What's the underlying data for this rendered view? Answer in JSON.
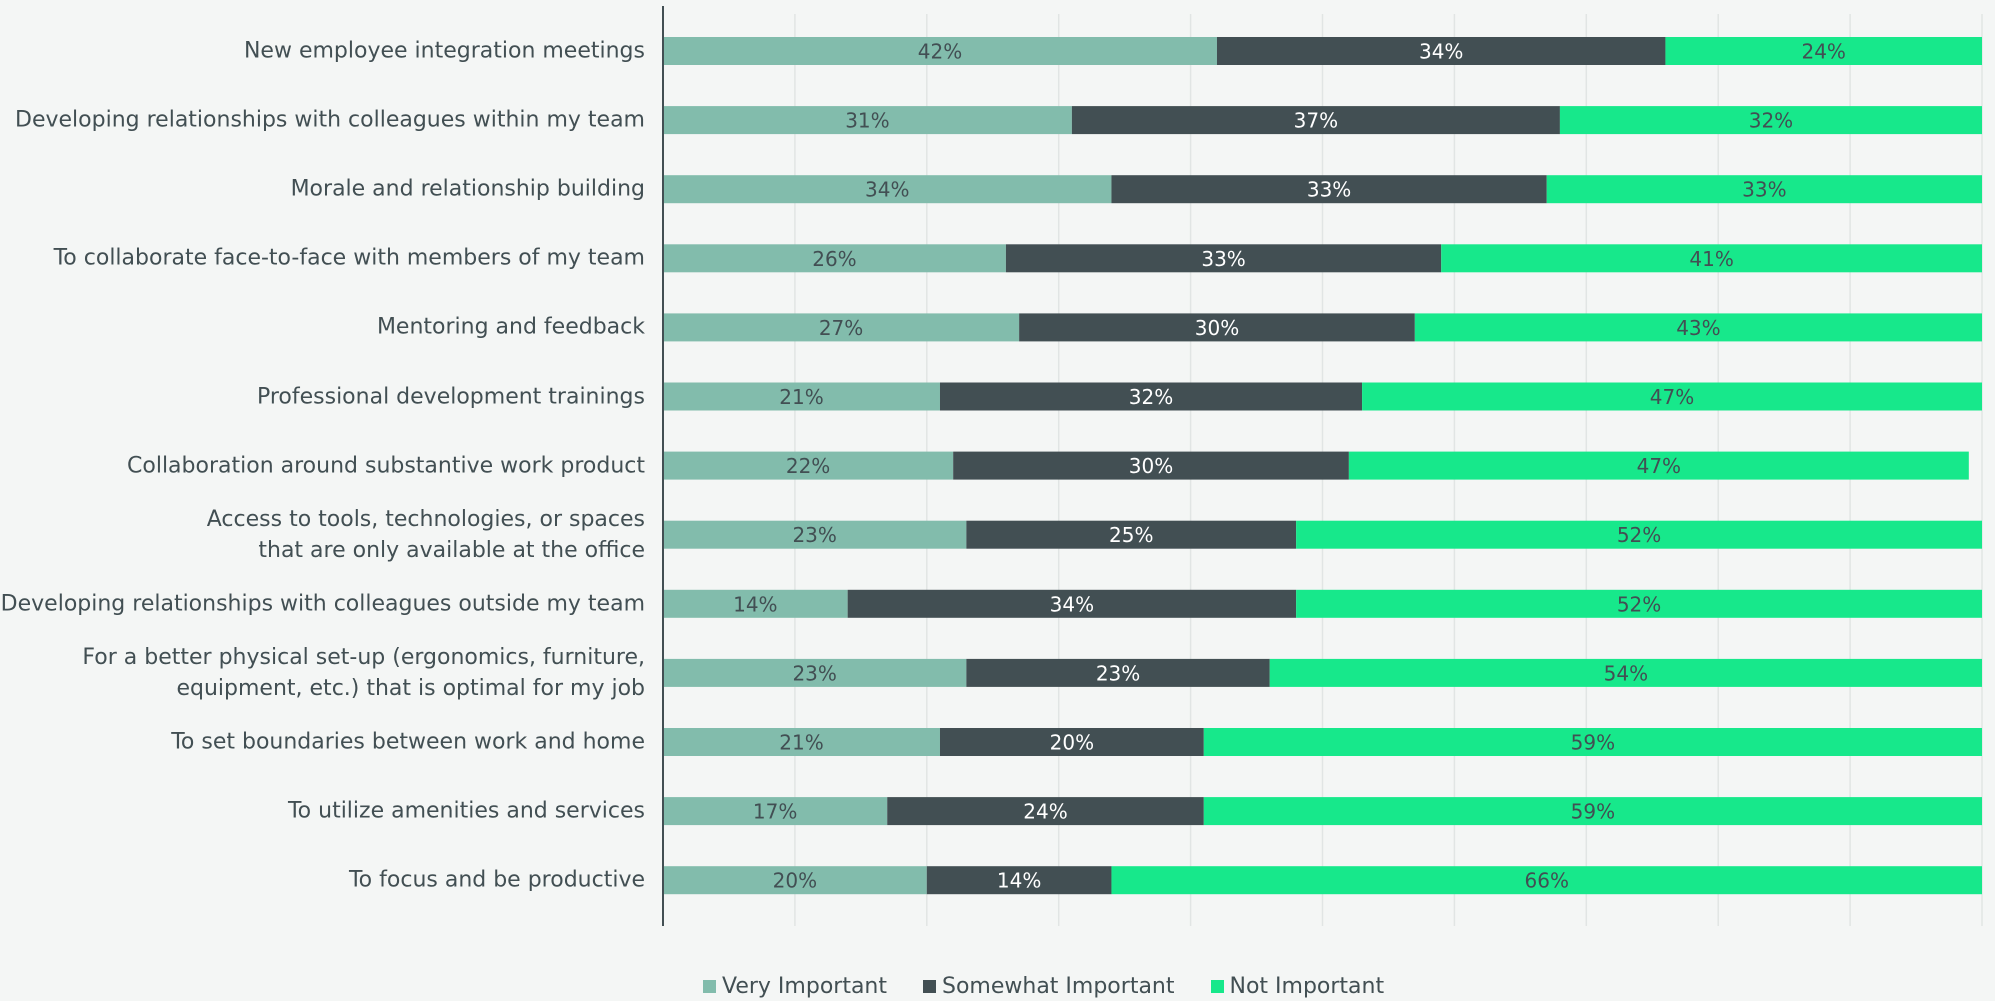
{
  "chart_data": {
    "type": "stacked_bar_horizontal",
    "categories": [
      "New employee integration meetings",
      "Developing relationships with colleagues within my team",
      "Morale and relationship building",
      "To collaborate face-to-face with members of my team",
      "Mentoring and feedback",
      "Professional development trainings",
      "Collaboration around substantive work product",
      "Access to tools, technologies, or spaces\nthat are only available at the office",
      "Developing relationships with colleagues outside my team",
      "For a better physical set-up (ergonomics, furniture,\nequipment, etc.) that is optimal for my job",
      "To set boundaries between work and home",
      "To utilize amenities and services",
      "To focus and be productive"
    ],
    "series": [
      {
        "name": "Very Important",
        "color": "#82bcac",
        "values": [
          42,
          31,
          34,
          26,
          27,
          21,
          22,
          23,
          14,
          23,
          21,
          17,
          20
        ],
        "value_labels": [
          "42%",
          "31%",
          "34%",
          "26%",
          "27%",
          "21%",
          "22%",
          "23%",
          "14%",
          "23%",
          "21%",
          "17%",
          "20%"
        ]
      },
      {
        "name": "Somewhat Important",
        "color": "#424f53",
        "values": [
          34,
          37,
          33,
          33,
          30,
          32,
          30,
          25,
          34,
          23,
          20,
          24,
          14
        ],
        "value_labels": [
          "34%",
          "37%",
          "33%",
          "33%",
          "30%",
          "32%",
          "30%",
          "25%",
          "34%",
          "23%",
          "20%",
          "24%",
          "14%"
        ]
      },
      {
        "name": "Not Important",
        "color": "#17e88b",
        "values": [
          24,
          32,
          33,
          41,
          43,
          47,
          47,
          52,
          52,
          54,
          59,
          59,
          66
        ],
        "value_labels": [
          "24%",
          "32%",
          "33%",
          "41%",
          "43%",
          "47%",
          "47%",
          "52%",
          "52%",
          "54%",
          "59%",
          "59%",
          "66%"
        ]
      }
    ],
    "xlim": [
      0,
      100
    ],
    "xticks": [
      0,
      10,
      20,
      30,
      40,
      50,
      60,
      70,
      80,
      90,
      100
    ],
    "grid": true,
    "legend": "bottom"
  }
}
